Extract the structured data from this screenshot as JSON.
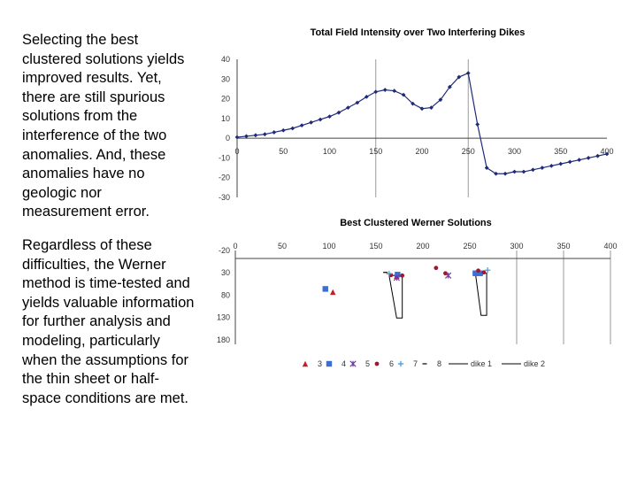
{
  "text": {
    "para1": "Selecting the best clustered solutions yields improved results. Yet, there are still spurious solutions from the interference of the two anomalies. And, these anomalies have no geologic nor measurement error.",
    "para2": "Regardless of these difficulties, the Werner method is time-tested and yields valuable information for further analysis and modeling, particularly when the assumptions for the thin sheet or half-space conditions are met."
  },
  "chart_data": [
    {
      "type": "line",
      "title": "Total Field Intensity over Two Interfering Dikes",
      "xlim": [
        0,
        400
      ],
      "ylim": [
        -30,
        40
      ],
      "x_ticks": [
        "0",
        "50",
        "100",
        "150",
        "200",
        "250",
        "300",
        "350",
        "400"
      ],
      "y_ticks": [
        "40",
        "30",
        "20",
        "10",
        "0",
        "-10",
        "-20",
        "-30"
      ],
      "vertical_gridlines_at": [
        150,
        250
      ],
      "color": "#1f2a78",
      "x": [
        0,
        10,
        20,
        30,
        40,
        50,
        60,
        70,
        80,
        90,
        100,
        110,
        120,
        130,
        140,
        150,
        160,
        170,
        180,
        190,
        200,
        210,
        220,
        230,
        240,
        250,
        260,
        270,
        280,
        290,
        300,
        310,
        320,
        330,
        340,
        350,
        360,
        370,
        380,
        390,
        400
      ],
      "y": [
        0.5,
        1,
        1.5,
        2,
        3,
        4,
        5,
        6.5,
        8,
        9.5,
        11,
        13,
        15.5,
        18,
        21,
        23.5,
        24.5,
        24,
        22,
        17.5,
        15,
        15.5,
        19.5,
        26,
        31,
        33,
        7,
        -15,
        -18,
        -18,
        -17,
        -17,
        -16,
        -15,
        -14,
        -13,
        -12,
        -11,
        -10,
        -9,
        -8
      ]
    },
    {
      "type": "scatter",
      "title": "Best Clustered Werner Solutions",
      "xlim": [
        0,
        400
      ],
      "ylim": [
        -20,
        190
      ],
      "y_inverted": true,
      "x_ticks": [
        "0",
        "50",
        "100",
        "150",
        "200",
        "250",
        "300",
        "350",
        "400"
      ],
      "y_ticks": [
        "-20",
        "30",
        "80",
        "130",
        "180"
      ],
      "vertical_gridlines_at": [
        300,
        350,
        400
      ],
      "series": [
        {
          "name": "3",
          "marker": "triangle",
          "color": "#c0202a",
          "points": [
            [
              104,
              73
            ],
            [
              172,
              37
            ]
          ]
        },
        {
          "name": "4",
          "marker": "square",
          "color": "#3a6fd8",
          "points": [
            [
              96,
              66
            ],
            [
              173,
              34
            ],
            [
              256,
              31
            ],
            [
              261,
              31
            ]
          ]
        },
        {
          "name": "5",
          "marker": "star",
          "color": "#6a3aa0",
          "points": [
            [
              172,
              41
            ],
            [
              227,
              36
            ]
          ]
        },
        {
          "name": "6",
          "marker": "circle",
          "color": "#a01830",
          "points": [
            [
              166,
              35
            ],
            [
              178,
              36
            ],
            [
              214,
              19
            ],
            [
              224,
              31
            ],
            [
              259,
              25
            ],
            [
              265,
              29
            ]
          ]
        },
        {
          "name": "7",
          "marker": "plus",
          "color": "#3a9ad8",
          "points": [
            [
              164,
              32
            ],
            [
              269,
              24
            ]
          ]
        },
        {
          "name": "8",
          "marker": "dash",
          "color": "#000000",
          "points": [
            [
              160,
              29
            ]
          ]
        }
      ],
      "dikes": [
        {
          "name": "dike 1",
          "polygon": [
            [
              164,
              36
            ],
            [
              178,
              36
            ],
            [
              178,
              131
            ],
            [
              172,
              131
            ]
          ]
        },
        {
          "name": "dike 2",
          "polygon": [
            [
              256,
              31
            ],
            [
              268,
              31
            ],
            [
              268,
              125
            ],
            [
              262,
              125
            ]
          ]
        }
      ]
    }
  ]
}
